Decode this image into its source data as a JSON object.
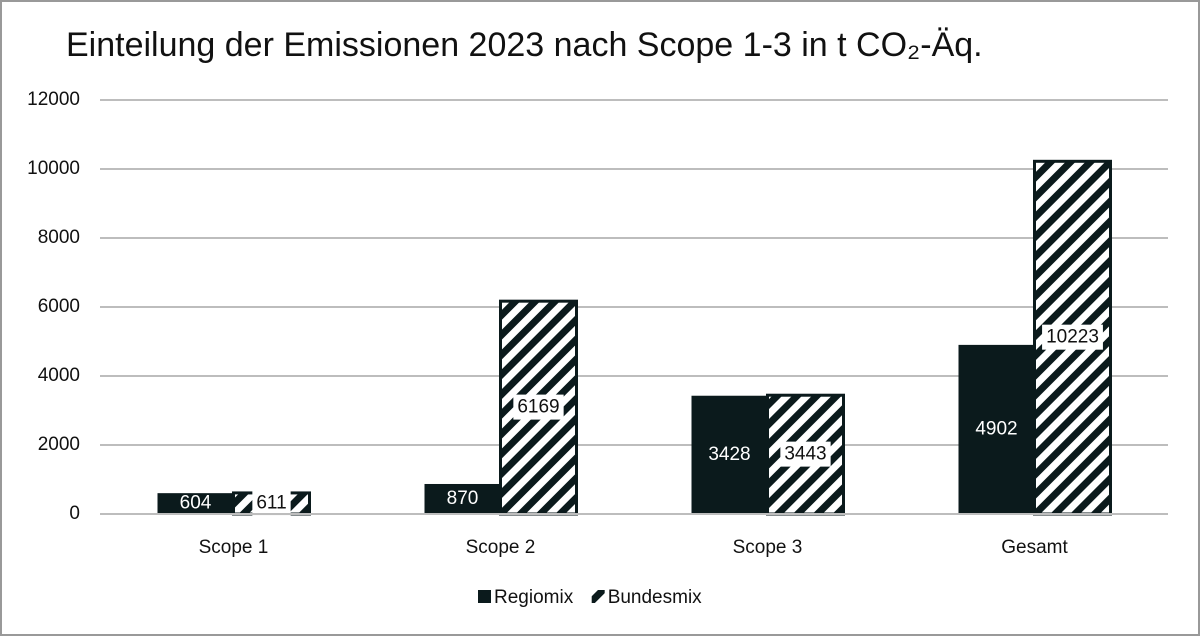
{
  "chart_data": {
    "type": "bar",
    "title": "Einteilung der Emissionen 2023 nach  Scope 1-3 in t CO₂-Äq.",
    "categories": [
      "Scope 1",
      "Scope 2",
      "Scope 3",
      "Gesamt"
    ],
    "series": [
      {
        "name": "Regiomix",
        "color": "#0b1a1c",
        "values": [
          604,
          870,
          3428,
          4902
        ]
      },
      {
        "name": "Bundesmix",
        "color": "#0b1a1c",
        "pattern": "diagonal-hatch",
        "values": [
          611,
          6169,
          3443,
          10223
        ]
      }
    ],
    "ylim": [
      0,
      12000
    ],
    "yticks": [
      0,
      2000,
      4000,
      6000,
      8000,
      10000,
      12000
    ],
    "grid": true,
    "legend": "bottom"
  }
}
